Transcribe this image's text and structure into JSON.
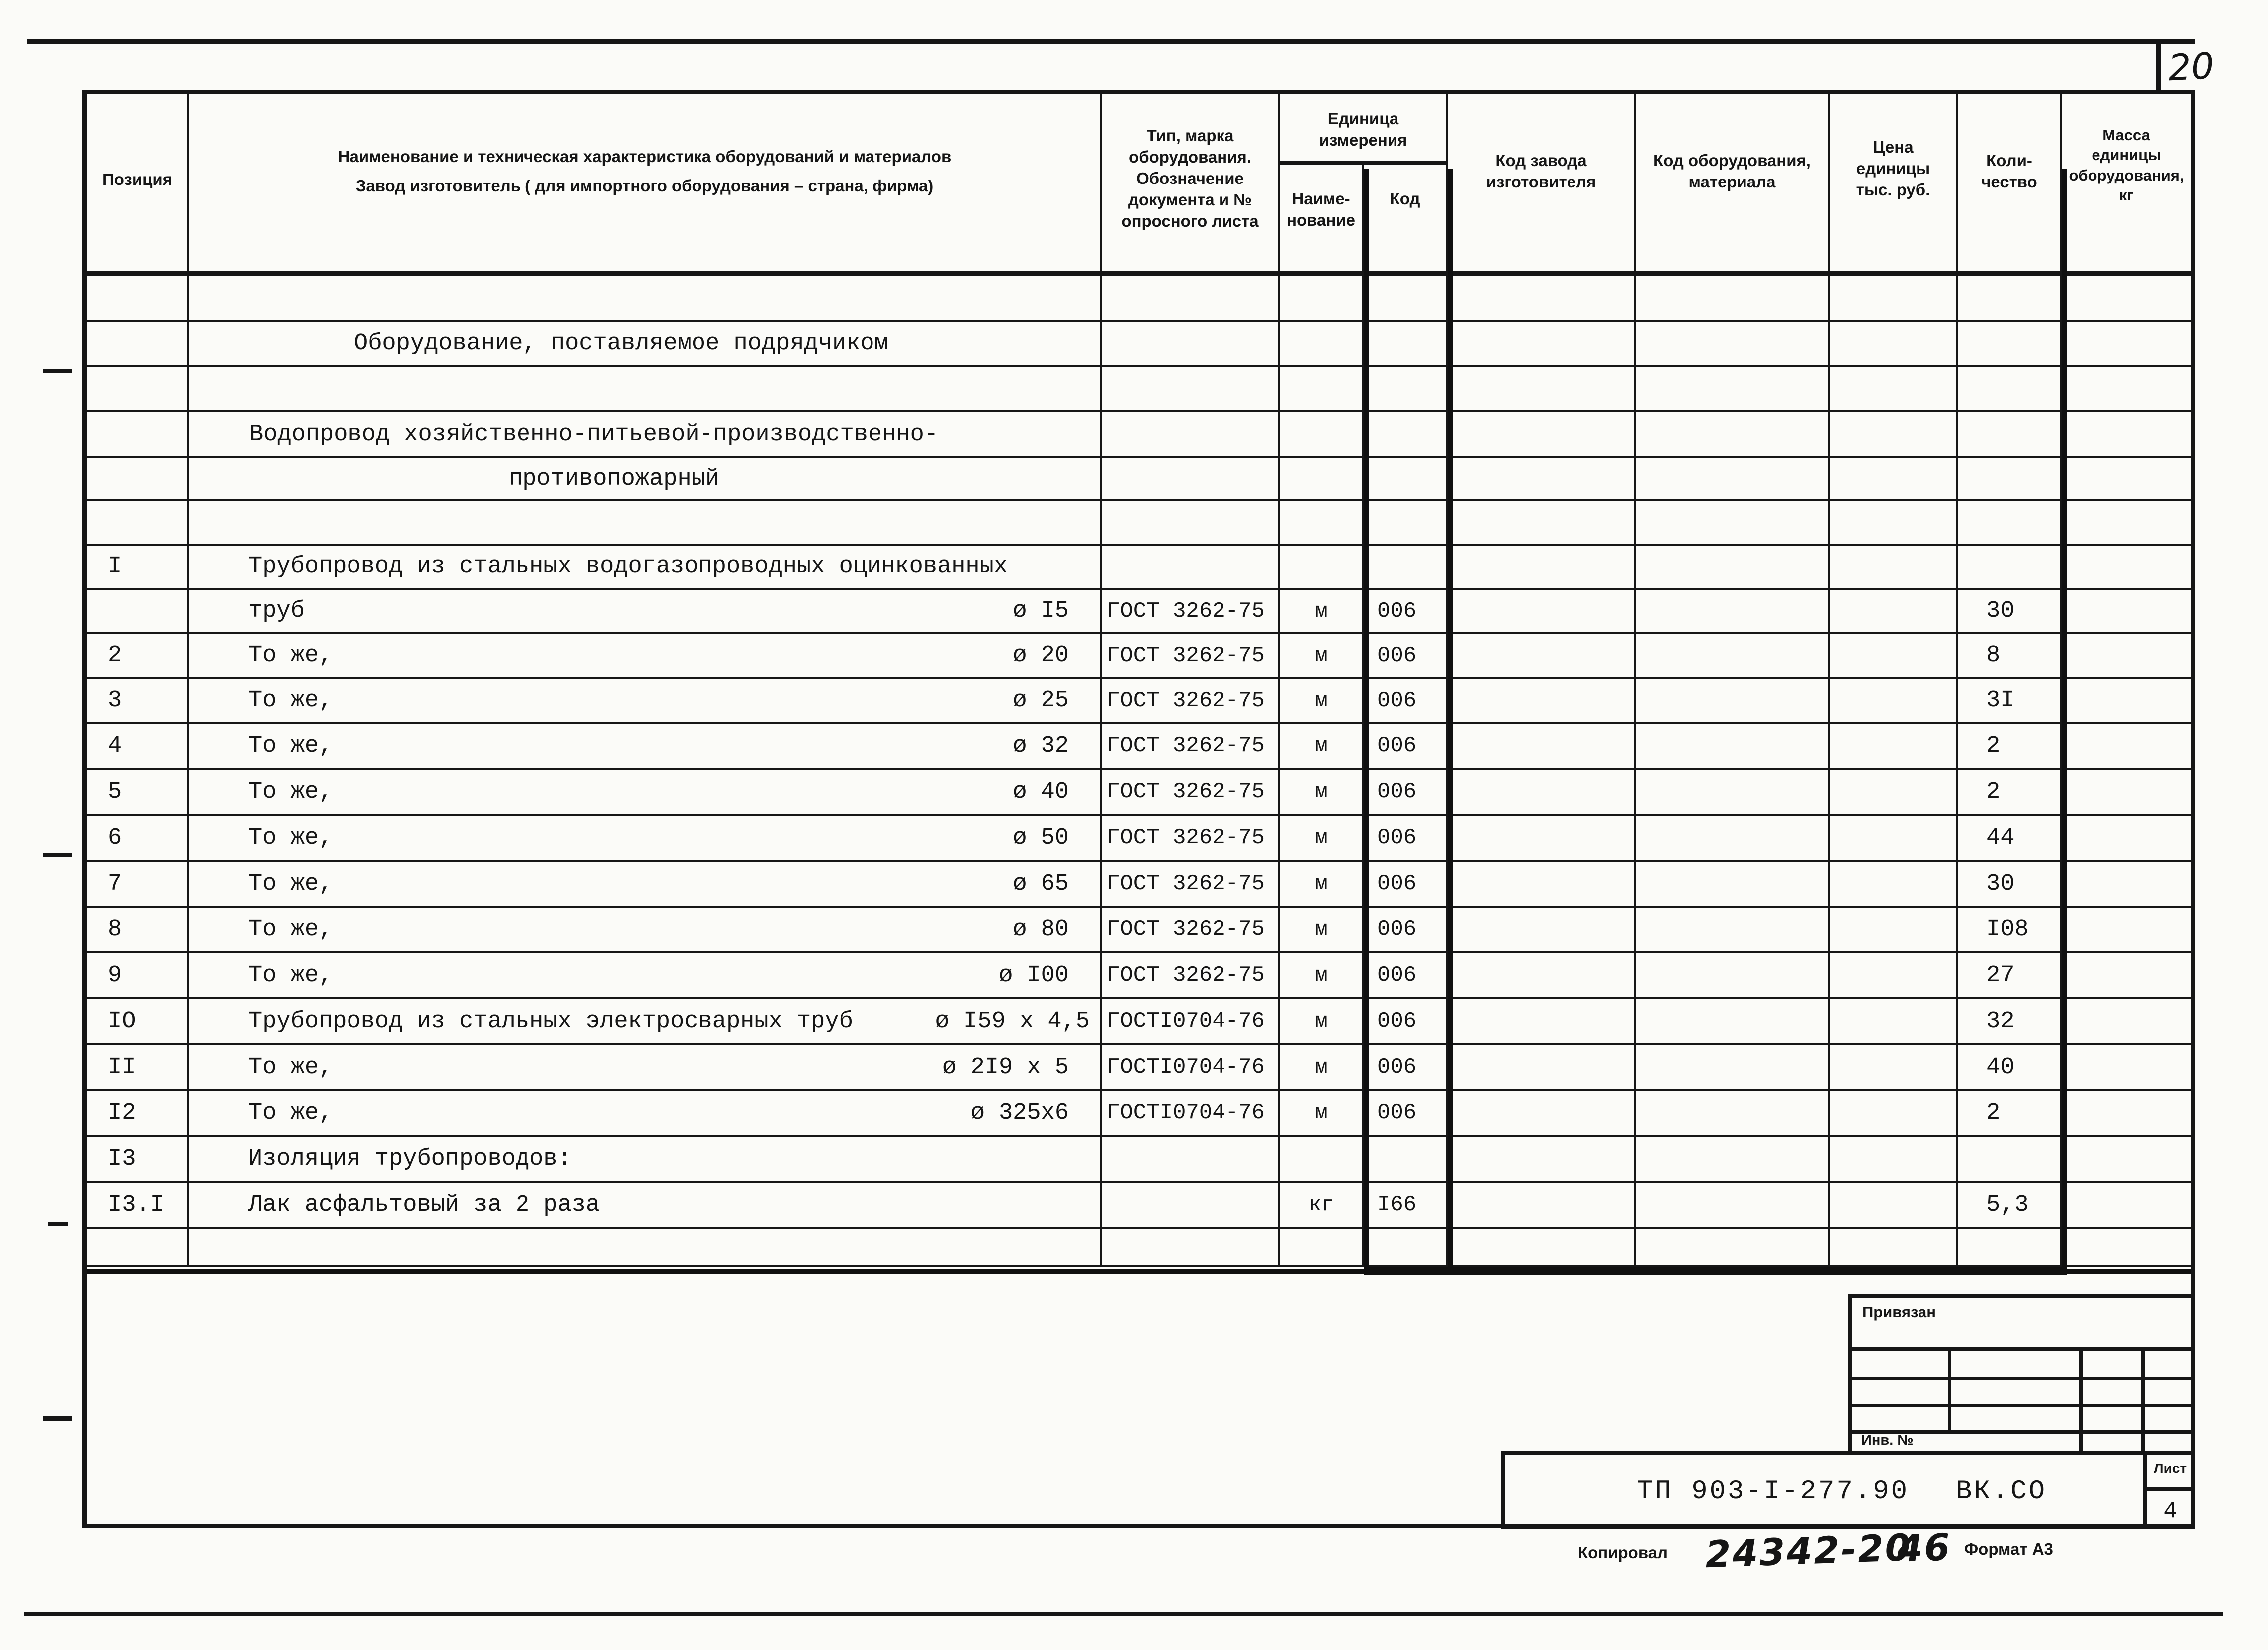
{
  "page": {
    "number": "20",
    "footer": {
      "kopiroval": "Копировал",
      "copy_code": "24342-20",
      "copy_num": "46",
      "format": "Формат А3"
    }
  },
  "stamp": {
    "privyazan": "Привязан",
    "inv": "Инв. №"
  },
  "titleblock": {
    "doc_code": "ТП 903-I-277.90",
    "suffix": "ВК.СО",
    "sheet_label": "Лист",
    "sheet_number": "4"
  },
  "table": {
    "headers": {
      "poz": "Позиция",
      "name1": "Наименование и техническая характеристика оборудований и материалов",
      "name2": "Завод изготовитель ( для импортного оборудования – страна, фирма)",
      "type": [
        "Тип, марка",
        "оборудования.",
        "Обозначение",
        "документа и №",
        "опросного листа"
      ],
      "unit_group": [
        "Единица",
        "измерения"
      ],
      "unit_name": [
        "Наиме-",
        "нование"
      ],
      "unit_code": "Код",
      "factory": [
        "Код завода",
        "изготовителя"
      ],
      "material": [
        "Код оборудования,",
        "материала"
      ],
      "price": [
        "Цена",
        "единицы",
        "тыс. руб."
      ],
      "qty": [
        "Коли-",
        "чество"
      ],
      "mass": [
        "Масса",
        "единицы",
        "оборудования,",
        "кг"
      ]
    },
    "rows": [
      {
        "h": 93,
        "poz": "",
        "name": "",
        "dia": "",
        "doc": "",
        "unit": "",
        "code": "",
        "qty": ""
      },
      {
        "h": 89,
        "poz": "",
        "name": "Оборудование, поставляемое подрядчиком",
        "dia": "",
        "doc": "",
        "unit": "",
        "code": "",
        "qty": "",
        "ind": 330
      },
      {
        "h": 92,
        "poz": "",
        "name": "",
        "dia": "",
        "doc": "",
        "unit": "",
        "code": "",
        "qty": ""
      },
      {
        "h": 92,
        "poz": "",
        "name": "Водопровод хозяйственно-питьевой-производственно-",
        "dia": "",
        "doc": "",
        "unit": "",
        "code": "",
        "qty": "",
        "ind": 120
      },
      {
        "h": 86,
        "poz": "",
        "name": "противопожарный",
        "dia": "",
        "doc": "",
        "unit": "",
        "code": "",
        "qty": "",
        "ind": 640
      },
      {
        "h": 89,
        "poz": "",
        "name": "",
        "dia": "",
        "doc": "",
        "unit": "",
        "code": "",
        "qty": ""
      },
      {
        "h": 89,
        "poz": "I",
        "name": "Трубопровод из стальных водогазопроводных оцинкованных",
        "dia": "",
        "doc": "",
        "unit": "",
        "code": "",
        "qty": ""
      },
      {
        "h": 89,
        "poz": "",
        "name": "труб",
        "dia": "ø I5",
        "doc": "ГОСТ 3262-75",
        "unit": "м",
        "code": "006",
        "qty": "30"
      },
      {
        "h": 89,
        "poz": "2",
        "name": "То же,",
        "dia": "ø 20",
        "doc": "ГОСТ 3262-75",
        "unit": "м",
        "code": "006",
        "qty": "8"
      },
      {
        "h": 91,
        "poz": "3",
        "name": "То же,",
        "dia": "ø 25",
        "doc": "ГОСТ 3262-75",
        "unit": "м",
        "code": "006",
        "qty": "3I"
      },
      {
        "h": 92,
        "poz": "4",
        "name": "То же,",
        "dia": "ø 32",
        "doc": "ГОСТ 3262-75",
        "unit": "м",
        "code": "006",
        "qty": "2"
      },
      {
        "h": 92,
        "poz": "5",
        "name": "То же,",
        "dia": "ø 40",
        "doc": "ГОСТ 3262-75",
        "unit": "м",
        "code": "006",
        "qty": "2"
      },
      {
        "h": 92,
        "poz": "6",
        "name": "То же,",
        "dia": "ø 50",
        "doc": "ГОСТ 3262-75",
        "unit": "м",
        "code": "006",
        "qty": "44"
      },
      {
        "h": 92,
        "poz": "7",
        "name": "То же,",
        "dia": "ø 65",
        "doc": "ГОСТ 3262-75",
        "unit": "м",
        "code": "006",
        "qty": "30"
      },
      {
        "h": 92,
        "poz": "8",
        "name": "То же,",
        "dia": "ø 80",
        "doc": "ГОСТ 3262-75",
        "unit": "м",
        "code": "006",
        "qty": "I08"
      },
      {
        "h": 92,
        "poz": "9",
        "name": "То же,",
        "dia": "ø I00",
        "doc": "ГОСТ 3262-75",
        "unit": "м",
        "code": "006",
        "qty": "27"
      },
      {
        "h": 92,
        "poz": "IO",
        "name": "Трубопровод из стальных электросварных труб",
        "dia": "ø I59 x 4,5",
        "doc": "ГОСТI0704-76",
        "unit": "м",
        "code": "006",
        "qty": "32",
        "dr": 20
      },
      {
        "h": 92,
        "poz": "II",
        "name": "То же,",
        "dia": "ø 2I9 x 5",
        "doc": "ГОСТI0704-76",
        "unit": "м",
        "code": "006",
        "qty": "40"
      },
      {
        "h": 92,
        "poz": "I2",
        "name": "То же,",
        "dia": "ø 325x6",
        "doc": "ГОСТI0704-76",
        "unit": "м",
        "code": "006",
        "qty": "2"
      },
      {
        "h": 92,
        "poz": "I3",
        "name": "Изоляция трубопроводов:",
        "dia": "",
        "doc": "",
        "unit": "",
        "code": "",
        "qty": ""
      },
      {
        "h": 92,
        "poz": "I3.I",
        "name": "Лак асфальтовый за 2 раза",
        "dia": "",
        "doc": "",
        "unit": "кг",
        "code": "I66",
        "qty": "5,3"
      },
      {
        "h": 76,
        "poz": "",
        "name": "",
        "dia": "",
        "doc": "",
        "unit": "",
        "code": "",
        "qty": ""
      }
    ]
  }
}
